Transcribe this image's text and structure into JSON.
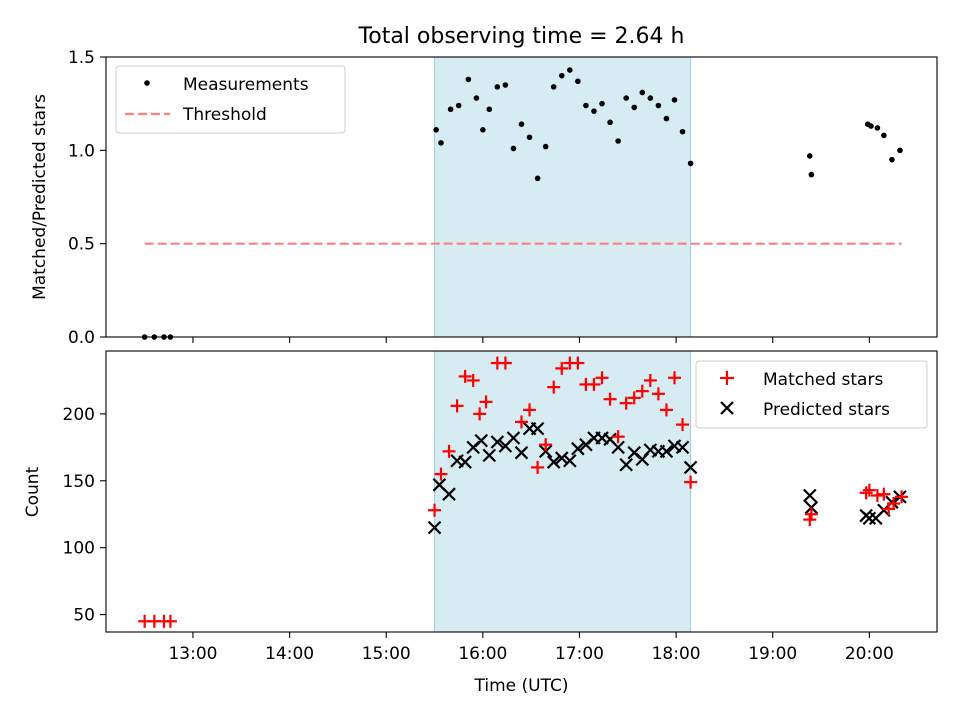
{
  "figure": {
    "title": "Total observing time = 2.64 h",
    "xlabel": "Time (UTC)"
  },
  "chart_data": [
    {
      "type": "scatter",
      "ylabel": "Matched/Predicted stars",
      "xlim": [
        "12:06",
        "20:42"
      ],
      "ylim": [
        0,
        1.5
      ],
      "yticks": [
        "0.0",
        "0.5",
        "1.0",
        "1.5"
      ],
      "legend_position": "top-left",
      "shaded_interval": {
        "start": "15:30",
        "end": "18:09"
      },
      "series": [
        {
          "name": "Measurements",
          "marker": "dot",
          "color": "#000000",
          "x": [
            "12:30",
            "12:36",
            "12:42",
            "12:46",
            "15:31",
            "15:34",
            "15:40",
            "15:45",
            "15:51",
            "15:56",
            "16:00",
            "16:04",
            "16:09",
            "16:14",
            "16:19",
            "16:24",
            "16:29",
            "16:34",
            "16:39",
            "16:44",
            "16:49",
            "16:54",
            "16:59",
            "17:04",
            "17:09",
            "17:14",
            "17:19",
            "17:24",
            "17:29",
            "17:34",
            "17:39",
            "17:44",
            "17:49",
            "17:54",
            "17:59",
            "18:04",
            "18:09",
            "19:23",
            "19:24",
            "19:59",
            "20:01",
            "20:05",
            "20:09",
            "20:14",
            "20:19"
          ],
          "y": [
            0.0,
            0.0,
            0.0,
            0.0,
            1.11,
            1.04,
            1.22,
            1.24,
            1.38,
            1.28,
            1.11,
            1.22,
            1.34,
            1.35,
            1.01,
            1.14,
            1.07,
            0.85,
            1.02,
            1.34,
            1.4,
            1.43,
            1.37,
            1.24,
            1.21,
            1.25,
            1.15,
            1.05,
            1.28,
            1.23,
            1.31,
            1.28,
            1.24,
            1.17,
            1.27,
            1.1,
            0.93,
            0.97,
            0.87,
            1.14,
            1.13,
            1.12,
            1.08,
            0.95,
            1.0
          ]
        },
        {
          "name": "Threshold",
          "line": "dashed",
          "color": "#ff7f7f",
          "x": [
            "12:30",
            "20:20"
          ],
          "y": [
            0.5,
            0.5
          ]
        }
      ]
    },
    {
      "type": "scatter",
      "ylabel": "Count",
      "xlim": [
        "12:06",
        "20:42"
      ],
      "ylim": [
        37,
        247
      ],
      "yticks": [
        "50",
        "100",
        "150",
        "200"
      ],
      "xticks": [
        "13:00",
        "14:00",
        "15:00",
        "16:00",
        "17:00",
        "18:00",
        "19:00",
        "20:00"
      ],
      "legend_position": "top-right",
      "shaded_interval": {
        "start": "15:30",
        "end": "18:09"
      },
      "series": [
        {
          "name": "Matched stars",
          "marker": "plus",
          "color": "#ff0000",
          "x": [
            "12:30",
            "12:36",
            "12:42",
            "12:46",
            "15:30",
            "15:34",
            "15:39",
            "15:44",
            "15:49",
            "15:54",
            "15:58",
            "16:02",
            "16:09",
            "16:14",
            "16:24",
            "16:29",
            "16:34",
            "16:39",
            "16:44",
            "16:49",
            "16:54",
            "16:59",
            "17:04",
            "17:09",
            "17:14",
            "17:19",
            "17:24",
            "17:29",
            "17:34",
            "17:39",
            "17:44",
            "17:49",
            "17:54",
            "17:59",
            "18:04",
            "18:09",
            "19:23",
            "19:24",
            "19:58",
            "20:00",
            "20:05",
            "20:09",
            "20:12",
            "20:15",
            "20:20"
          ],
          "y": [
            45,
            45,
            45,
            45,
            128,
            155,
            172,
            206,
            228,
            225,
            200,
            209,
            238,
            238,
            194,
            203,
            160,
            177,
            220,
            234,
            238,
            238,
            222,
            222,
            227,
            211,
            183,
            208,
            212,
            217,
            225,
            215,
            203,
            227,
            192,
            149,
            121,
            125,
            141,
            143,
            139,
            140,
            129,
            133,
            138
          ]
        },
        {
          "name": "Predicted stars",
          "marker": "x",
          "color": "#000000",
          "x": [
            "15:30",
            "15:33",
            "15:39",
            "15:44",
            "15:49",
            "15:54",
            "15:59",
            "16:04",
            "16:09",
            "16:14",
            "16:19",
            "16:24",
            "16:29",
            "16:34",
            "16:39",
            "16:44",
            "16:49",
            "16:54",
            "16:59",
            "17:04",
            "17:09",
            "17:14",
            "17:19",
            "17:24",
            "17:29",
            "17:34",
            "17:39",
            "17:44",
            "17:49",
            "17:54",
            "17:59",
            "18:04",
            "18:09",
            "19:23",
            "19:24",
            "19:58",
            "20:00",
            "20:04",
            "20:09",
            "20:14",
            "20:19"
          ],
          "y": [
            115,
            147,
            140,
            165,
            164,
            175,
            180,
            169,
            179,
            176,
            182,
            171,
            189,
            189,
            172,
            164,
            167,
            165,
            174,
            177,
            182,
            182,
            181,
            175,
            162,
            171,
            166,
            173,
            172,
            172,
            176,
            175,
            160,
            139,
            130,
            124,
            122,
            122,
            128,
            134,
            138
          ]
        }
      ]
    }
  ]
}
